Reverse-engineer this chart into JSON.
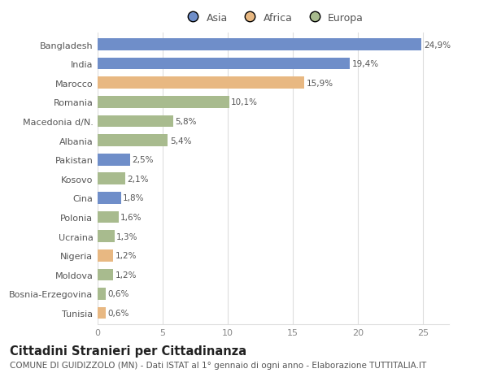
{
  "countries": [
    "Tunisia",
    "Bosnia-Erzegovina",
    "Moldova",
    "Nigeria",
    "Ucraina",
    "Polonia",
    "Cina",
    "Kosovo",
    "Pakistan",
    "Albania",
    "Macedonia d/N.",
    "Romania",
    "Marocco",
    "India",
    "Bangladesh"
  ],
  "values": [
    0.6,
    0.6,
    1.2,
    1.2,
    1.3,
    1.6,
    1.8,
    2.1,
    2.5,
    5.4,
    5.8,
    10.1,
    15.9,
    19.4,
    24.9
  ],
  "labels": [
    "0,6%",
    "0,6%",
    "1,2%",
    "1,2%",
    "1,3%",
    "1,6%",
    "1,8%",
    "2,1%",
    "2,5%",
    "5,4%",
    "5,8%",
    "10,1%",
    "15,9%",
    "19,4%",
    "24,9%"
  ],
  "continents": [
    "Africa",
    "Europa",
    "Europa",
    "Africa",
    "Europa",
    "Europa",
    "Asia",
    "Europa",
    "Asia",
    "Europa",
    "Europa",
    "Europa",
    "Africa",
    "Asia",
    "Asia"
  ],
  "colors": {
    "Asia": "#6f8ec9",
    "Africa": "#e8b882",
    "Europa": "#a8bb8e"
  },
  "legend_labels": [
    "Asia",
    "Africa",
    "Europa"
  ],
  "legend_colors": [
    "#6f8ec9",
    "#e8b882",
    "#a8bb8e"
  ],
  "title": "Cittadini Stranieri per Cittadinanza",
  "subtitle": "COMUNE DI GUIDIZZOLO (MN) - Dati ISTAT al 1° gennaio di ogni anno - Elaborazione TUTTITALIA.IT",
  "xlim": [
    0,
    27
  ],
  "xticks": [
    0,
    5,
    10,
    15,
    20,
    25
  ],
  "background_color": "#ffffff",
  "grid_color": "#dddddd",
  "bar_height": 0.62,
  "title_fontsize": 10.5,
  "subtitle_fontsize": 7.5,
  "label_fontsize": 7.5,
  "tick_fontsize": 8,
  "legend_fontsize": 9
}
